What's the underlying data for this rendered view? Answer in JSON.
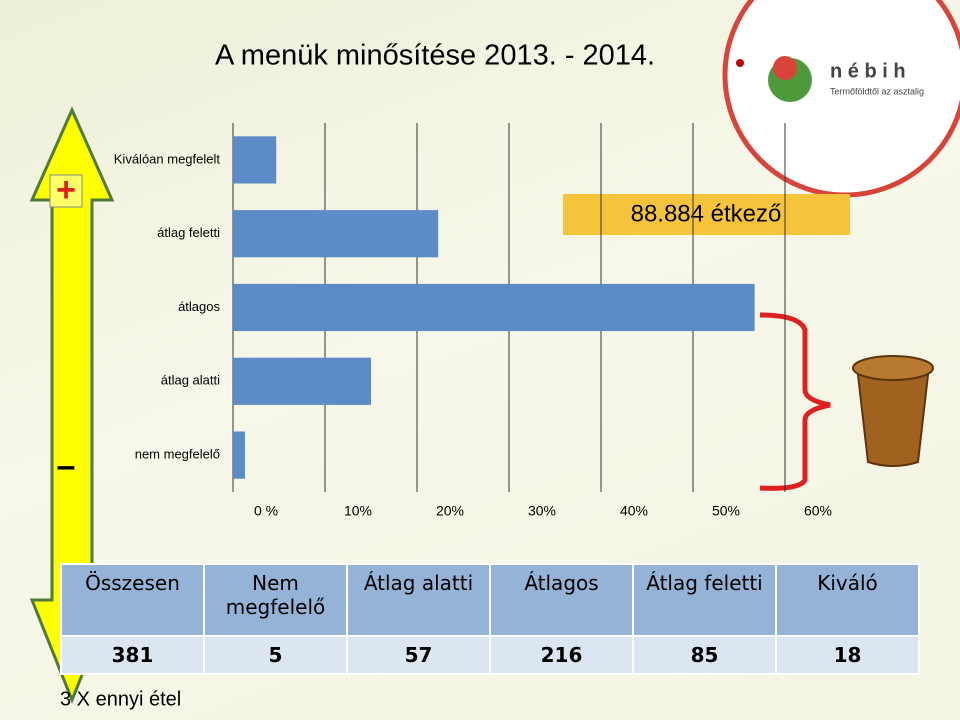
{
  "chart_data": {
    "type": "hbar",
    "categories": [
      "Kiválóan megfelelt",
      "átlag feletti",
      "átlagos",
      "átlag alatti",
      "nem megfelelő"
    ],
    "values": [
      4.7,
      22.3,
      56.7,
      15.0,
      1.3
    ],
    "color": "#5b8cc8",
    "xlim": [
      0,
      60
    ],
    "xticks": [
      {
        "value": 0,
        "label": "0 %"
      },
      {
        "value": 10,
        "label": "10%"
      },
      {
        "value": 20,
        "label": "20%"
      },
      {
        "value": 30,
        "label": "30%"
      },
      {
        "value": 40,
        "label": "40%"
      },
      {
        "value": 50,
        "label": "50%"
      },
      {
        "value": 60,
        "label": "60%"
      }
    ],
    "grid": true
  },
  "title": "A menük minősítése 2013. - 2014.",
  "annotation": "88.884 étkező",
  "footnote": "3 X ennyi étel",
  "arrow": {
    "top": "+",
    "bottom": "–"
  },
  "logo": {
    "name": "n é b i h",
    "tagline": "Termőföldtől az asztalig"
  },
  "table": {
    "header": [
      "Összesen",
      "Nem megfelelő",
      "Átlag alatti",
      "Átlagos",
      "Átlag feletti",
      "Kiváló"
    ],
    "rows": [
      [
        381,
        5,
        57,
        216,
        85,
        18
      ]
    ]
  }
}
